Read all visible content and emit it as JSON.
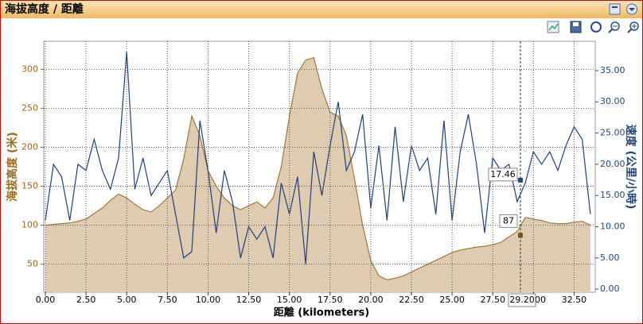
{
  "title": "海拔高度 / 距離",
  "chart_data": {
    "type": "line",
    "x_label": "距離 (kilometers)",
    "y_label": "海拔高度 (米)",
    "y2_label": "速度 (公里/小時)",
    "x": [
      0,
      0.5,
      1,
      1.5,
      2,
      2.5,
      3,
      3.5,
      4,
      4.5,
      5,
      5.5,
      6,
      6.5,
      7,
      7.5,
      8,
      8.5,
      9,
      9.5,
      10,
      10.5,
      11,
      11.5,
      12,
      12.5,
      13,
      13.5,
      14,
      14.5,
      15,
      15.5,
      16,
      16.5,
      17,
      17.5,
      18,
      18.5,
      19,
      19.5,
      20,
      20.5,
      21,
      21.5,
      22,
      22.5,
      23,
      23.5,
      24,
      24.5,
      25,
      25.5,
      26,
      26.5,
      27,
      27.5,
      28,
      28.5,
      29,
      29.5,
      30,
      30.5,
      31,
      31.5,
      32,
      32.5,
      33,
      33.5
    ],
    "series": [
      {
        "name": "海拔高度",
        "color": "#a0783a",
        "fill": "#dfcbb0",
        "axis": "y",
        "values": [
          100,
          101,
          102,
          103,
          105,
          108,
          115,
          122,
          132,
          140,
          135,
          127,
          120,
          117,
          125,
          135,
          145,
          185,
          240,
          215,
          170,
          150,
          135,
          125,
          120,
          125,
          130,
          122,
          135,
          175,
          240,
          295,
          312,
          315,
          275,
          245,
          240,
          215,
          160,
          100,
          55,
          35,
          30,
          32,
          35,
          40,
          45,
          50,
          55,
          60,
          65,
          68,
          70,
          72,
          73,
          75,
          78,
          85,
          92,
          110,
          108,
          106,
          103,
          102,
          102,
          104,
          105,
          100
        ]
      },
      {
        "name": "速度",
        "color": "#1f3f7a",
        "axis": "y2",
        "values": [
          11,
          20,
          18,
          11,
          20,
          19,
          24,
          19,
          16,
          21,
          38,
          16,
          21,
          15,
          17,
          19,
          12,
          5,
          6,
          27,
          19,
          9,
          19,
          14,
          5,
          10,
          8,
          10,
          5,
          17,
          12,
          18,
          4,
          22,
          15,
          23,
          30,
          19,
          22,
          28,
          13,
          23,
          11,
          26,
          14,
          23,
          19,
          21,
          12,
          27,
          11,
          22,
          28,
          20,
          9,
          21,
          19,
          20,
          14,
          17,
          22,
          20,
          22,
          19,
          23,
          26,
          24,
          12
        ]
      }
    ],
    "xlim": [
      0,
      33.8
    ],
    "ylim": [
      14,
      336
    ],
    "y2lim": [
      -0.5,
      39.7
    ],
    "xticks": [
      {
        "value": 0,
        "label": "0.00"
      },
      {
        "value": 2.5,
        "label": "2.50"
      },
      {
        "value": 5,
        "label": "5.00"
      },
      {
        "value": 7.5,
        "label": "7.50"
      },
      {
        "value": 10,
        "label": "10.00"
      },
      {
        "value": 12.5,
        "label": "12.50"
      },
      {
        "value": 15,
        "label": "15.00"
      },
      {
        "value": 17.5,
        "label": "17.50"
      },
      {
        "value": 20,
        "label": "20.00"
      },
      {
        "value": 22.5,
        "label": "22.50"
      },
      {
        "value": 25,
        "label": "25.00"
      },
      {
        "value": 27.5,
        "label": "27.50"
      },
      {
        "value": 30,
        "label": "30.00"
      },
      {
        "value": 32.5,
        "label": "32.50"
      }
    ],
    "yticks": [
      50,
      100,
      150,
      200,
      250,
      300
    ],
    "y2ticks": [
      {
        "value": 0,
        "label": "0.00"
      },
      {
        "value": 5,
        "label": "5.00"
      },
      {
        "value": 10,
        "label": "10.00"
      },
      {
        "value": 15,
        "label": "15.00"
      },
      {
        "value": 20,
        "label": "20.00"
      },
      {
        "value": 25,
        "label": "25.00"
      },
      {
        "value": 30,
        "label": "30.00"
      },
      {
        "value": 35,
        "label": "35.00"
      }
    ],
    "grid": true,
    "cursor": {
      "x": {
        "value": 29.2,
        "label": "29.20"
      },
      "elevation": 87,
      "speed": 17.46
    }
  }
}
